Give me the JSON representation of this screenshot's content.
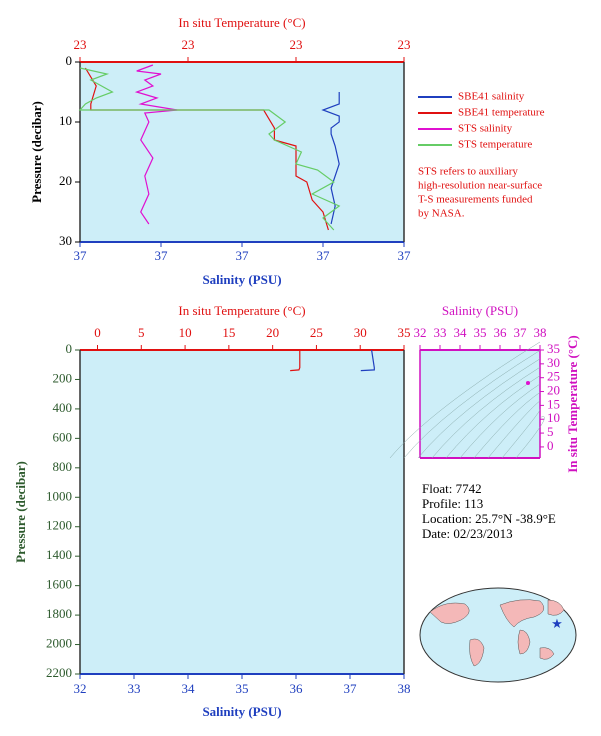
{
  "chart_data": [
    {
      "type": "line",
      "xlabel": "In situ Temperature (°C)",
      "x2label": "Salinity (PSU)",
      "ylabel": "Pressure (decibar)",
      "xlim": [
        22.7,
        23.3
      ],
      "xticks": [
        {
          "value": 22.7,
          "label": "23"
        },
        {
          "value": 22.9,
          "label": "23"
        },
        {
          "value": 23.1,
          "label": "23"
        },
        {
          "value": 23.3,
          "label": "23"
        }
      ],
      "x2lim": [
        36.6,
        37.4
      ],
      "x2ticks": [
        {
          "value": 36.6,
          "label": "37"
        },
        {
          "value": 36.8,
          "label": "37"
        },
        {
          "value": 37.0,
          "label": "37"
        },
        {
          "value": 37.2,
          "label": "37"
        },
        {
          "value": 37.4,
          "label": "37"
        }
      ],
      "ylim": [
        0,
        30
      ],
      "yticks": [
        0,
        10,
        20,
        30
      ],
      "y_inverted": true,
      "series": [
        {
          "name": "SBE41 salinity",
          "color": "#1f3fbf",
          "axis": "x2",
          "x": [
            37.24,
            37.24,
            37.2,
            37.24,
            37.24,
            37.22,
            37.22,
            37.23,
            37.24,
            37.22,
            37.23,
            37.22
          ],
          "values": [
            5,
            7,
            8,
            9,
            10,
            11,
            12,
            14,
            17,
            21,
            24,
            27
          ]
        },
        {
          "name": "SBE41 temperature",
          "color": "#e01010",
          "axis": "x",
          "x": [
            22.71,
            22.73,
            22.72,
            22.72,
            23.04,
            23.06,
            23.06,
            23.1,
            23.1,
            23.12,
            23.13,
            23.15,
            23.16
          ],
          "values": [
            1,
            4,
            7,
            8,
            8,
            11,
            13,
            14,
            19,
            20,
            23,
            25,
            28
          ]
        },
        {
          "name": "STS salinity",
          "color": "#e010d0",
          "axis": "x2",
          "x": [
            36.78,
            36.74,
            36.8,
            36.76,
            36.78,
            36.74,
            36.79,
            36.75,
            36.84,
            36.76,
            36.77,
            36.75,
            36.78,
            36.76,
            36.77,
            36.75,
            36.77
          ],
          "values": [
            0.5,
            1.5,
            2,
            3,
            4,
            5,
            6,
            7,
            8,
            8.5,
            10,
            13,
            16,
            19,
            22,
            25,
            27
          ]
        },
        {
          "name": "STS temperature",
          "color": "#66cc66",
          "axis": "x",
          "x": [
            22.7,
            22.75,
            22.72,
            22.76,
            22.73,
            22.71,
            22.7,
            23.05,
            23.08,
            23.05,
            23.06,
            23.11,
            23.1,
            23.14,
            23.17,
            23.13,
            23.18,
            23.15,
            23.17
          ],
          "values": [
            1,
            2,
            3,
            5,
            6,
            7,
            8,
            8,
            10,
            12,
            13,
            15,
            17,
            18,
            20,
            22,
            24,
            26,
            28
          ]
        }
      ],
      "legend": "right",
      "note": [
        "STS refers to auxiliary",
        "high-resolution near-surface",
        "T-S measurements funded",
        "by NASA."
      ]
    },
    {
      "type": "line",
      "xlabel": "In situ Temperature (°C)",
      "x2label": "Salinity (PSU)",
      "ylabel": "Pressure (decibar)",
      "xlim": [
        -2,
        35
      ],
      "xticks": [
        0,
        5,
        10,
        15,
        20,
        25,
        30,
        35
      ],
      "x2lim": [
        32,
        38
      ],
      "x2ticks": [
        32,
        33,
        34,
        35,
        36,
        37,
        38
      ],
      "ylim": [
        0,
        2200
      ],
      "yticks": [
        0,
        200,
        400,
        600,
        800,
        1000,
        1200,
        1400,
        1600,
        1800,
        2000,
        2200
      ],
      "y_inverted": true,
      "series": [
        {
          "color": "#e01010",
          "axis": "x",
          "x": [
            23.1,
            23.1,
            23.0,
            22.0
          ],
          "values": [
            0,
            120,
            135,
            140
          ]
        },
        {
          "color": "#1f3fbf",
          "axis": "x2",
          "x": [
            37.4,
            37.45,
            37.45,
            37.2
          ],
          "values": [
            0,
            120,
            135,
            140
          ]
        }
      ]
    },
    {
      "type": "scatter",
      "xlabel": "Salinity (PSU)",
      "ylabel": "In situ Temperature (°C)",
      "xlim": [
        32,
        38
      ],
      "xticks": [
        32,
        33,
        34,
        35,
        36,
        37,
        38
      ],
      "ylim": [
        -4,
        35
      ],
      "yticks": [
        0,
        5,
        10,
        15,
        20,
        25,
        30,
        35
      ],
      "series": [
        {
          "color": "#e010d0",
          "x": [
            37.4
          ],
          "values": [
            23.1
          ]
        }
      ]
    }
  ],
  "info": [
    "Float:  7742",
    "Profile:  113",
    "Location:  25.7°N  -38.9°E",
    "Date:  02/23/2013"
  ]
}
